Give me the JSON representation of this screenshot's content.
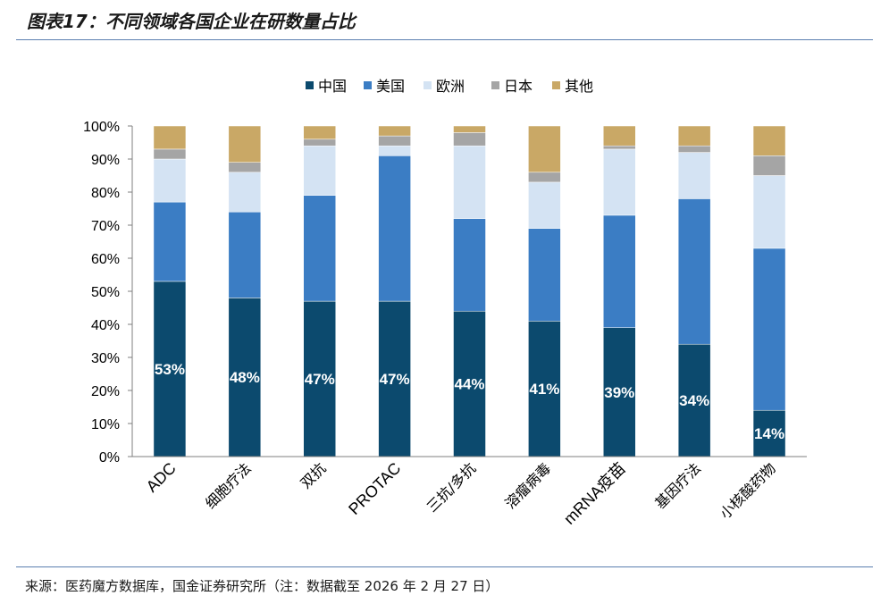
{
  "figure": {
    "title": "图表17：不同领域各国企业在研数量占比",
    "source": "来源：医药魔方数据库，国金证券研究所（注：数据截至 2026 年 2 月 27 日）"
  },
  "chart_data": {
    "type": "bar",
    "stacked": true,
    "percent": true,
    "categories": [
      "ADC",
      "细胞疗法",
      "双抗",
      "PROTAC",
      "三抗/多抗",
      "溶瘤病毒",
      "mRNA疫苗",
      "基因疗法",
      "小核酸药物"
    ],
    "series": [
      {
        "name": "中国",
        "color": "#0c4a6e",
        "values": [
          53,
          48,
          47,
          47,
          44,
          41,
          39,
          34,
          14
        ]
      },
      {
        "name": "美国",
        "color": "#3b7dc4",
        "values": [
          24,
          26,
          32,
          44,
          28,
          28,
          34,
          44,
          49
        ]
      },
      {
        "name": "欧洲",
        "color": "#d4e3f3",
        "values": [
          13,
          12,
          15,
          3,
          22,
          14,
          20,
          14,
          22
        ]
      },
      {
        "name": "日本",
        "color": "#a5a5a5",
        "values": [
          3,
          3,
          2,
          3,
          4,
          3,
          1,
          2,
          6
        ]
      },
      {
        "name": "其他",
        "color": "#c9a866",
        "values": [
          7,
          11,
          4,
          3,
          2,
          14,
          6,
          6,
          9
        ]
      }
    ],
    "data_labels": [
      "53%",
      "48%",
      "47%",
      "47%",
      "44%",
      "41%",
      "39%",
      "34%",
      "14%"
    ],
    "y_ticks": [
      "0%",
      "10%",
      "20%",
      "30%",
      "40%",
      "50%",
      "60%",
      "70%",
      "80%",
      "90%",
      "100%"
    ],
    "ylim": [
      0,
      100
    ],
    "xlabel": "",
    "ylabel": "",
    "legend_position": "top-center",
    "grid": false
  }
}
